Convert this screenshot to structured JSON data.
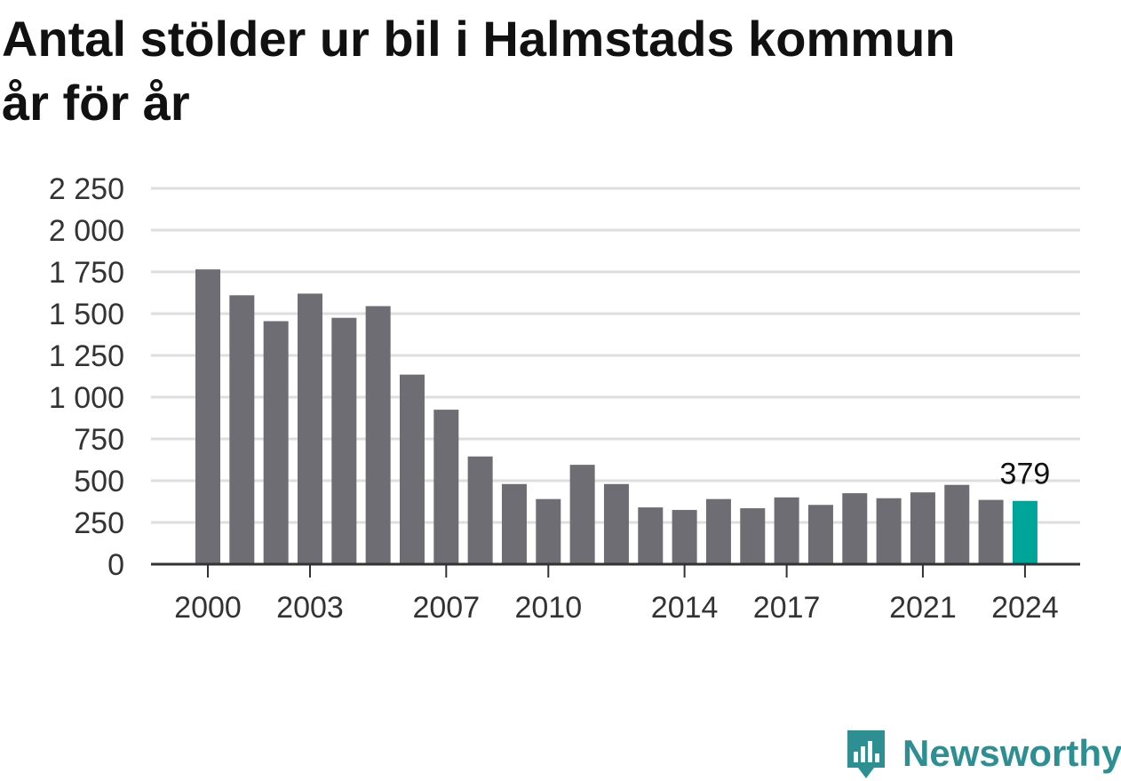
{
  "title": "Antal stölder ur bil i Halmstads kommun år för år",
  "brand": {
    "name": "Newsworthy",
    "logo_icon": "newsworthy-chart-bubble-icon"
  },
  "colors": {
    "bar": "#6e6d73",
    "highlight": "#00a59a",
    "grid": "#dedede",
    "axis": "#333333",
    "text": "#333333",
    "brand": "#2e8f92"
  },
  "chart_data": {
    "type": "bar",
    "title": "Antal stölder ur bil i Halmstads kommun år för år",
    "xlabel": "",
    "ylabel": "",
    "ylim": [
      0,
      2250
    ],
    "yticks": [
      0,
      250,
      500,
      750,
      1000,
      1250,
      1500,
      1750,
      2000,
      2250
    ],
    "ytick_labels": [
      "0",
      "250",
      "500",
      "750",
      "1 000",
      "1 250",
      "1 500",
      "1 750",
      "2 000",
      "2 250"
    ],
    "xtick_labels": [
      "2000",
      "2003",
      "2007",
      "2010",
      "2014",
      "2017",
      "2021",
      "2024"
    ],
    "categories": [
      "2000",
      "2001",
      "2002",
      "2003",
      "2004",
      "2005",
      "2006",
      "2007",
      "2008",
      "2009",
      "2010",
      "2011",
      "2012",
      "2013",
      "2014",
      "2015",
      "2016",
      "2017",
      "2018",
      "2019",
      "2020",
      "2021",
      "2022",
      "2023",
      "2024"
    ],
    "values": [
      1765,
      1610,
      1455,
      1620,
      1475,
      1545,
      1135,
      925,
      645,
      480,
      390,
      595,
      480,
      340,
      325,
      390,
      335,
      400,
      355,
      425,
      395,
      430,
      475,
      385,
      379
    ],
    "highlight": "2024",
    "highlight_label": "379",
    "grid": true,
    "legend": "none"
  }
}
